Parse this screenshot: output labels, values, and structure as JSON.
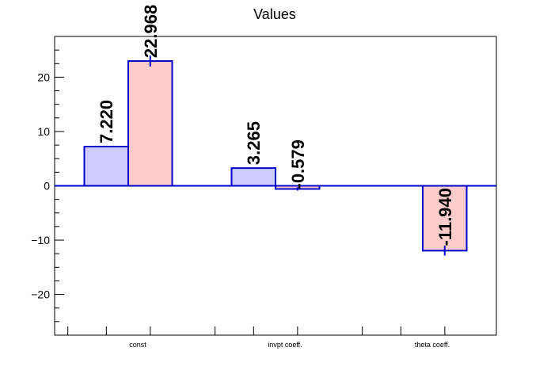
{
  "chart_data": {
    "type": "bar",
    "title": "Values",
    "categories": [
      "const",
      "invpt coeff.",
      "theta coeff."
    ],
    "xlabel": "",
    "ylabel": "",
    "ylim": [
      -27.5,
      27.5
    ],
    "yticks": [
      -20,
      -10,
      0,
      10,
      20
    ],
    "grid": false,
    "series": [
      {
        "fill": "#ccccff",
        "stroke": "#0000cc",
        "values": [
          7.22,
          3.265,
          null
        ],
        "labels": [
          "7.220",
          "3.265",
          ""
        ],
        "errors": [
          0,
          0,
          0
        ]
      },
      {
        "fill": "#ffcccc",
        "stroke": "#0000cc",
        "values": [
          22.968,
          -0.579,
          -11.94
        ],
        "labels": [
          "22.968",
          "-0.579",
          "-11.940"
        ],
        "errors": [
          1.0,
          0.3,
          0.9
        ]
      }
    ]
  }
}
